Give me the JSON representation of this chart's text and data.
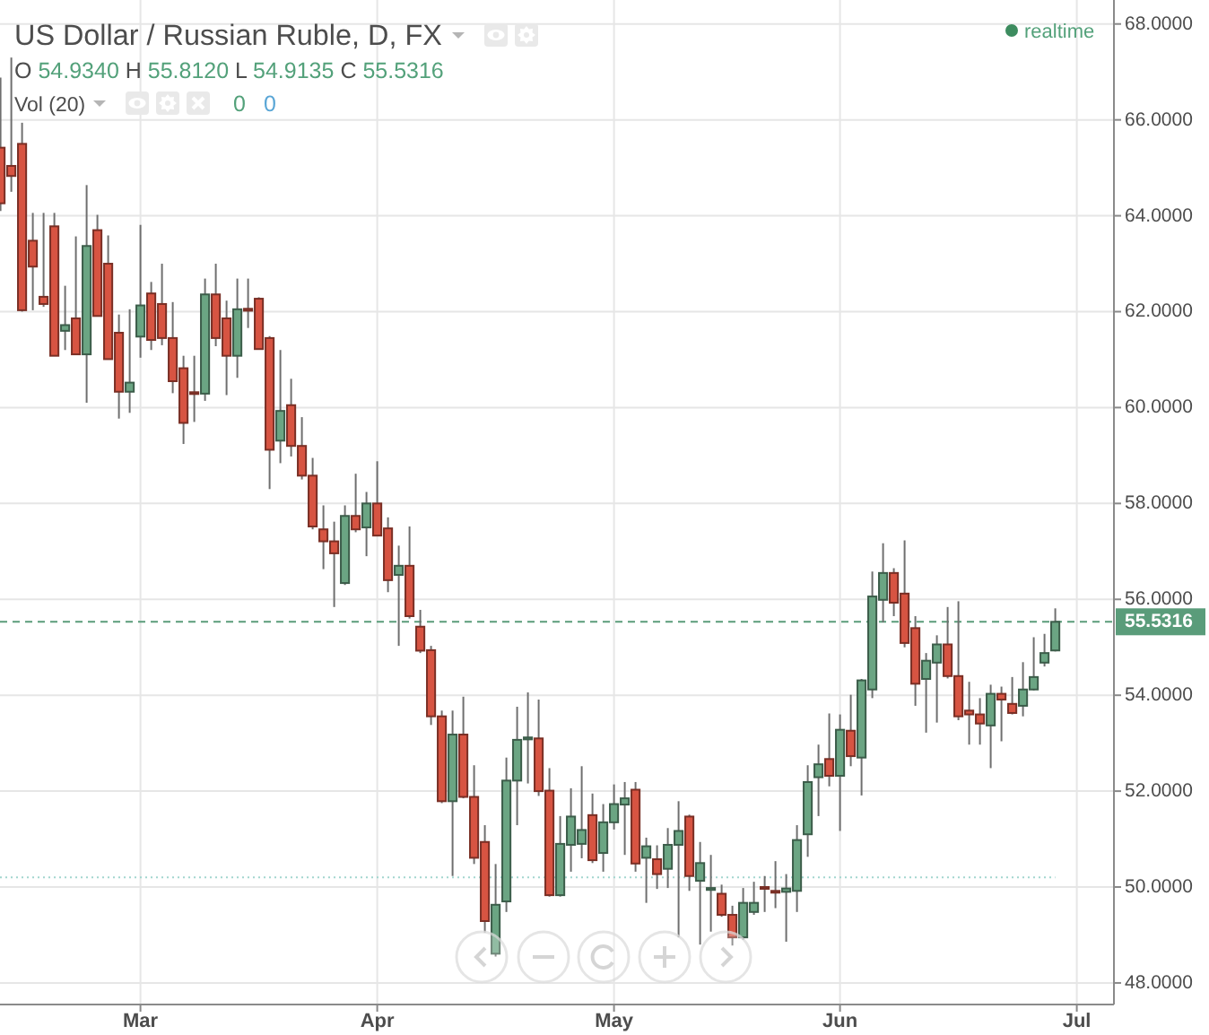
{
  "chart_data": {
    "type": "candlestick",
    "title": "US Dollar / Russian Ruble, D, FX",
    "categories": [
      null,
      null,
      null,
      null,
      null,
      null,
      null,
      null,
      null,
      null,
      null,
      null,
      null,
      "Mar",
      null,
      null,
      null,
      null,
      null,
      null,
      null,
      null,
      null,
      null,
      null,
      null,
      null,
      null,
      null,
      null,
      null,
      null,
      null,
      null,
      null,
      "Apr",
      null,
      null,
      null,
      null,
      null,
      null,
      null,
      null,
      null,
      null,
      null,
      null,
      null,
      null,
      null,
      null,
      null,
      null,
      null,
      null,
      null,
      "May",
      null,
      null,
      null,
      null,
      null,
      null,
      null,
      null,
      null,
      null,
      null,
      null,
      null,
      null,
      null,
      null,
      null,
      null,
      null,
      null,
      "Jun",
      null,
      null,
      null,
      null,
      null,
      null,
      null,
      null,
      null,
      null,
      null,
      null,
      null,
      null,
      null,
      null,
      null,
      null,
      null,
      null,
      null,
      "Jul"
    ],
    "ohlc": [
      [
        65.42,
        66.88,
        64.1,
        64.26
      ],
      [
        65.04,
        67.3,
        64.5,
        64.83
      ],
      [
        65.5,
        65.94,
        62.0,
        62.03
      ],
      [
        63.48,
        64.06,
        62.03,
        62.94
      ],
      [
        62.31,
        64.06,
        62.1,
        62.16
      ],
      [
        63.78,
        64.06,
        61.08,
        61.08
      ],
      [
        61.6,
        62.54,
        61.2,
        61.72
      ],
      [
        61.86,
        63.57,
        61.11,
        61.11
      ],
      [
        61.11,
        64.64,
        60.1,
        63.37
      ],
      [
        63.7,
        64.02,
        61.91,
        61.91
      ],
      [
        63.0,
        63.59,
        61.01,
        61.01
      ],
      [
        61.56,
        61.94,
        59.77,
        60.33
      ],
      [
        60.33,
        62.05,
        59.89,
        60.52
      ],
      [
        61.48,
        63.81,
        61.04,
        62.13
      ],
      [
        62.38,
        62.62,
        61.2,
        61.41
      ],
      [
        62.16,
        63.0,
        61.3,
        61.45
      ],
      [
        61.45,
        62.2,
        60.3,
        60.55
      ],
      [
        60.82,
        61.08,
        59.24,
        59.68
      ],
      [
        60.32,
        61.08,
        59.7,
        60.3
      ],
      [
        60.29,
        62.69,
        60.14,
        62.36
      ],
      [
        62.36,
        63.0,
        61.28,
        61.45
      ],
      [
        61.86,
        62.23,
        60.26,
        61.08
      ],
      [
        61.08,
        62.69,
        60.62,
        62.05
      ],
      [
        62.06,
        62.69,
        61.66,
        62.02
      ],
      [
        62.27,
        62.3,
        61.22,
        61.22
      ],
      [
        61.45,
        61.49,
        58.3,
        59.12
      ],
      [
        59.31,
        61.2,
        58.84,
        59.93
      ],
      [
        60.05,
        60.6,
        58.98,
        59.2
      ],
      [
        59.2,
        59.8,
        58.5,
        58.58
      ],
      [
        58.58,
        58.95,
        57.46,
        57.52
      ],
      [
        57.46,
        57.96,
        56.63,
        57.21
      ],
      [
        57.21,
        57.62,
        55.84,
        56.96
      ],
      [
        56.34,
        57.96,
        56.3,
        57.74
      ],
      [
        57.74,
        58.62,
        57.4,
        57.46
      ],
      [
        57.5,
        58.24,
        56.9,
        58.0
      ],
      [
        58.0,
        58.88,
        57.33,
        57.33
      ],
      [
        57.48,
        57.71,
        56.15,
        56.4
      ],
      [
        56.51,
        57.12,
        55.03,
        56.7
      ],
      [
        56.7,
        57.52,
        55.6,
        55.65
      ],
      [
        55.43,
        55.78,
        54.88,
        54.93
      ],
      [
        54.94,
        55.03,
        53.38,
        53.56
      ],
      [
        53.56,
        53.68,
        51.75,
        51.79
      ],
      [
        51.79,
        53.68,
        50.23,
        53.18
      ],
      [
        53.18,
        53.97,
        51.85,
        51.88
      ],
      [
        51.88,
        52.54,
        50.48,
        50.61
      ],
      [
        50.94,
        51.29,
        49.05,
        49.29
      ],
      [
        48.61,
        50.48,
        48.55,
        49.63
      ],
      [
        49.7,
        52.7,
        49.48,
        52.22
      ],
      [
        52.22,
        53.76,
        51.29,
        53.07
      ],
      [
        53.08,
        54.06,
        52.16,
        53.12
      ],
      [
        53.1,
        53.91,
        51.9,
        52.0
      ],
      [
        52.01,
        52.48,
        49.8,
        49.83
      ],
      [
        49.83,
        51.48,
        49.8,
        50.9
      ],
      [
        50.88,
        52.06,
        50.32,
        51.47
      ],
      [
        50.9,
        52.52,
        50.6,
        51.19
      ],
      [
        51.5,
        51.95,
        50.5,
        50.56
      ],
      [
        50.71,
        51.73,
        50.32,
        51.35
      ],
      [
        51.35,
        52.14,
        51.2,
        51.73
      ],
      [
        51.72,
        52.19,
        50.67,
        51.85
      ],
      [
        52.03,
        52.19,
        50.32,
        50.49
      ],
      [
        50.61,
        51.03,
        49.67,
        50.85
      ],
      [
        50.58,
        50.87,
        49.96,
        50.27
      ],
      [
        50.38,
        51.23,
        49.98,
        50.88
      ],
      [
        50.88,
        51.79,
        48.95,
        51.17
      ],
      [
        51.47,
        51.51,
        49.92,
        50.23
      ],
      [
        50.13,
        50.94,
        48.8,
        50.5
      ],
      [
        49.94,
        50.67,
        49.07,
        49.98
      ],
      [
        49.86,
        50.05,
        49.38,
        49.42
      ],
      [
        49.42,
        49.61,
        48.78,
        48.95
      ],
      [
        48.95,
        49.98,
        48.9,
        49.67
      ],
      [
        49.48,
        50.11,
        49.42,
        49.67
      ],
      [
        50.0,
        50.23,
        49.48,
        49.97
      ],
      [
        49.92,
        50.54,
        49.56,
        49.89
      ],
      [
        49.9,
        50.27,
        48.86,
        49.97
      ],
      [
        49.92,
        51.29,
        49.48,
        50.98
      ],
      [
        51.1,
        52.54,
        50.63,
        52.19
      ],
      [
        52.29,
        52.97,
        51.48,
        52.56
      ],
      [
        52.67,
        53.62,
        52.1,
        52.32
      ],
      [
        52.32,
        53.6,
        51.17,
        53.28
      ],
      [
        53.26,
        54.01,
        52.52,
        52.73
      ],
      [
        52.7,
        54.34,
        51.91,
        54.31
      ],
      [
        54.12,
        56.58,
        53.94,
        56.06
      ],
      [
        55.99,
        57.17,
        55.52,
        56.55
      ],
      [
        56.55,
        56.65,
        55.65,
        55.93
      ],
      [
        56.12,
        57.23,
        55.0,
        55.09
      ],
      [
        55.4,
        55.65,
        53.78,
        54.24
      ],
      [
        54.34,
        54.88,
        53.22,
        54.72
      ],
      [
        54.68,
        55.25,
        53.43,
        55.06
      ],
      [
        55.06,
        55.84,
        54.35,
        54.4
      ],
      [
        54.4,
        55.96,
        53.48,
        53.56
      ],
      [
        53.68,
        54.28,
        52.97,
        53.6
      ],
      [
        53.6,
        53.94,
        52.97,
        53.41
      ],
      [
        53.37,
        54.22,
        52.48,
        54.03
      ],
      [
        54.03,
        54.18,
        53.04,
        53.91
      ],
      [
        53.82,
        54.38,
        53.6,
        53.63
      ],
      [
        53.78,
        54.69,
        53.56,
        54.12
      ],
      [
        54.12,
        55.21,
        54.1,
        54.38
      ],
      [
        54.68,
        55.28,
        54.6,
        54.88
      ],
      [
        54.934,
        55.812,
        54.9135,
        55.5316
      ],
      null,
      null
    ],
    "colors": [
      "#d75442",
      "#d75442",
      "#d75442",
      "#d75442",
      "#d75442",
      "#d75442",
      "#6ba583",
      "#d75442",
      "#6ba583",
      "#d75442",
      "#d75442",
      "#d75442",
      "#6ba583",
      "#6ba583",
      "#d75442",
      "#d75442",
      "#d75442",
      "#d75442",
      "#d75442",
      "#6ba583",
      "#d75442",
      "#d75442",
      "#6ba583",
      "#d75442",
      "#d75442",
      "#d75442",
      "#6ba583",
      "#d75442",
      "#d75442",
      "#d75442",
      "#d75442",
      "#d75442",
      "#6ba583",
      "#d75442",
      "#6ba583",
      "#d75442",
      "#d75442",
      "#6ba583",
      "#d75442",
      "#d75442",
      "#d75442",
      "#d75442",
      "#6ba583",
      "#d75442",
      "#d75442",
      "#d75442",
      "#6ba583",
      "#6ba583",
      "#6ba583",
      "#6ba583",
      "#d75442",
      "#d75442",
      "#6ba583",
      "#6ba583",
      "#6ba583",
      "#d75442",
      "#6ba583",
      "#6ba583",
      "#6ba583",
      "#d75442",
      "#6ba583",
      "#d75442",
      "#6ba583",
      "#6ba583",
      "#d75442",
      "#6ba583",
      "#6ba583",
      "#d75442",
      "#d75442",
      "#6ba583",
      "#6ba583",
      "#d75442",
      "#d75442",
      "#6ba583",
      "#6ba583",
      "#6ba583",
      "#6ba583",
      "#d75442",
      "#6ba583",
      "#d75442",
      "#6ba583",
      "#6ba583",
      "#6ba583",
      "#d75442",
      "#d75442",
      "#d75442",
      "#6ba583",
      "#6ba583",
      "#d75442",
      "#d75442",
      "#d75442",
      "#d75442",
      "#6ba583",
      "#d75442",
      "#d75442",
      "#6ba583",
      "#6ba583",
      "#6ba583",
      "#6ba583",
      null,
      null
    ],
    "ylim": [
      47.55,
      68.5
    ],
    "yticks": [
      {
        "value": 48,
        "label": "48.0000"
      },
      {
        "value": 50,
        "label": "50.0000"
      },
      {
        "value": 52,
        "label": "52.0000"
      },
      {
        "value": 54,
        "label": "54.0000"
      },
      {
        "value": 56,
        "label": "56.0000"
      },
      {
        "value": 58,
        "label": "58.0000"
      },
      {
        "value": 60,
        "label": "60.0000"
      },
      {
        "value": 62,
        "label": "62.0000"
      },
      {
        "value": 64,
        "label": "64.0000"
      },
      {
        "value": 66,
        "label": "66.0000"
      },
      {
        "value": 68,
        "label": "68.0000"
      }
    ],
    "grid": true,
    "ref_lines": [
      {
        "axis": "y",
        "value": 55.5316,
        "label": "55.5316",
        "color": "#5a9c7a",
        "line_style": "dashed"
      },
      {
        "axis": "y",
        "value": 50.2,
        "color": "#a3d6cf",
        "line_style": "dotted"
      }
    ],
    "annotations": [
      "O 54.9340 H 55.8120 L 54.9135 C 55.5316",
      "Vol (20)",
      "0 0",
      "realtime"
    ]
  }
}
